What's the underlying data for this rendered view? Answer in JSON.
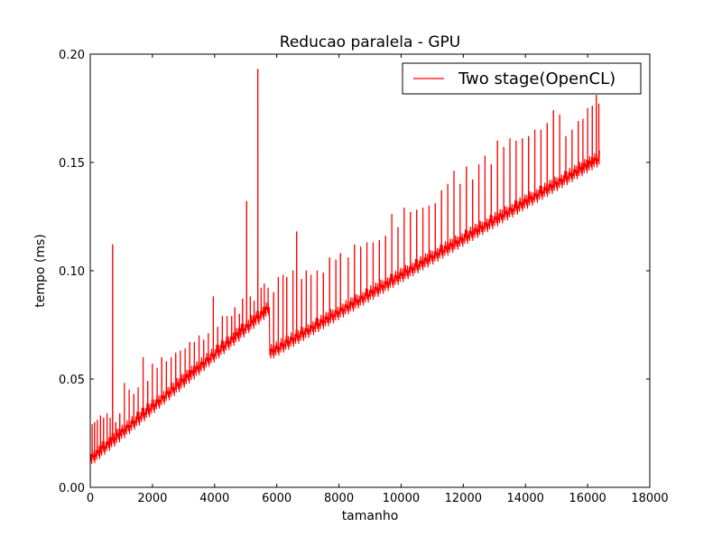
{
  "chart_data": {
    "type": "line",
    "title": "Reducao paralela - GPU",
    "xlabel": "tamanho",
    "ylabel": "tempo (ms)",
    "xlim": [
      0,
      18000
    ],
    "ylim": [
      0.0,
      0.2
    ],
    "xticks": [
      0,
      2000,
      4000,
      6000,
      8000,
      10000,
      12000,
      14000,
      16000,
      18000
    ],
    "xtick_labels": [
      "0",
      "2000",
      "4000",
      "6000",
      "8000",
      "10000",
      "12000",
      "14000",
      "16000",
      "18000"
    ],
    "yticks": [
      0.0,
      0.05,
      0.1,
      0.15,
      0.2
    ],
    "ytick_labels": [
      "0.00",
      "0.05",
      "0.10",
      "0.15",
      "0.20"
    ],
    "grid": false,
    "legend_position": "top-right",
    "series": [
      {
        "name": "Two stage(OpenCL)",
        "color": "#ff0000",
        "baseline": [
          {
            "x": 0,
            "y": 0.013
          },
          {
            "x": 5200,
            "y": 0.076
          },
          {
            "x": 5760,
            "y": 0.083
          },
          {
            "x": 5770,
            "y": 0.062
          },
          {
            "x": 16384,
            "y": 0.152
          }
        ],
        "band_width": 0.0035,
        "spikes": [
          {
            "x": 60,
            "y": 0.029
          },
          {
            "x": 140,
            "y": 0.03
          },
          {
            "x": 230,
            "y": 0.031
          },
          {
            "x": 330,
            "y": 0.033
          },
          {
            "x": 430,
            "y": 0.032
          },
          {
            "x": 540,
            "y": 0.034
          },
          {
            "x": 640,
            "y": 0.032
          },
          {
            "x": 720,
            "y": 0.112
          },
          {
            "x": 820,
            "y": 0.03
          },
          {
            "x": 950,
            "y": 0.034
          },
          {
            "x": 1100,
            "y": 0.048
          },
          {
            "x": 1250,
            "y": 0.045
          },
          {
            "x": 1400,
            "y": 0.043
          },
          {
            "x": 1540,
            "y": 0.046
          },
          {
            "x": 1700,
            "y": 0.06
          },
          {
            "x": 1850,
            "y": 0.049
          },
          {
            "x": 2000,
            "y": 0.057
          },
          {
            "x": 2150,
            "y": 0.055
          },
          {
            "x": 2300,
            "y": 0.06
          },
          {
            "x": 2450,
            "y": 0.058
          },
          {
            "x": 2600,
            "y": 0.06
          },
          {
            "x": 2750,
            "y": 0.062
          },
          {
            "x": 2900,
            "y": 0.063
          },
          {
            "x": 3050,
            "y": 0.064
          },
          {
            "x": 3200,
            "y": 0.067
          },
          {
            "x": 3350,
            "y": 0.067
          },
          {
            "x": 3500,
            "y": 0.07
          },
          {
            "x": 3650,
            "y": 0.068
          },
          {
            "x": 3800,
            "y": 0.071
          },
          {
            "x": 3960,
            "y": 0.088
          },
          {
            "x": 4100,
            "y": 0.074
          },
          {
            "x": 4250,
            "y": 0.079
          },
          {
            "x": 4400,
            "y": 0.079
          },
          {
            "x": 4550,
            "y": 0.079
          },
          {
            "x": 4650,
            "y": 0.083
          },
          {
            "x": 4800,
            "y": 0.08
          },
          {
            "x": 4900,
            "y": 0.087
          },
          {
            "x": 5030,
            "y": 0.132
          },
          {
            "x": 5150,
            "y": 0.088
          },
          {
            "x": 5270,
            "y": 0.086
          },
          {
            "x": 5390,
            "y": 0.193
          },
          {
            "x": 5500,
            "y": 0.092
          },
          {
            "x": 5600,
            "y": 0.094
          },
          {
            "x": 5720,
            "y": 0.092
          },
          {
            "x": 5900,
            "y": 0.09
          },
          {
            "x": 6050,
            "y": 0.097
          },
          {
            "x": 6200,
            "y": 0.098
          },
          {
            "x": 6320,
            "y": 0.097
          },
          {
            "x": 6520,
            "y": 0.1
          },
          {
            "x": 6640,
            "y": 0.118
          },
          {
            "x": 6800,
            "y": 0.096
          },
          {
            "x": 6950,
            "y": 0.1
          },
          {
            "x": 7100,
            "y": 0.098
          },
          {
            "x": 7300,
            "y": 0.1
          },
          {
            "x": 7500,
            "y": 0.099
          },
          {
            "x": 7700,
            "y": 0.106
          },
          {
            "x": 7900,
            "y": 0.105
          },
          {
            "x": 8050,
            "y": 0.108
          },
          {
            "x": 8300,
            "y": 0.106
          },
          {
            "x": 8500,
            "y": 0.112
          },
          {
            "x": 8700,
            "y": 0.111
          },
          {
            "x": 8900,
            "y": 0.113
          },
          {
            "x": 9100,
            "y": 0.113
          },
          {
            "x": 9300,
            "y": 0.114
          },
          {
            "x": 9500,
            "y": 0.116
          },
          {
            "x": 9700,
            "y": 0.126
          },
          {
            "x": 9900,
            "y": 0.12
          },
          {
            "x": 10100,
            "y": 0.129
          },
          {
            "x": 10300,
            "y": 0.127
          },
          {
            "x": 10500,
            "y": 0.128
          },
          {
            "x": 10700,
            "y": 0.129
          },
          {
            "x": 10900,
            "y": 0.13
          },
          {
            "x": 11100,
            "y": 0.131
          },
          {
            "x": 11300,
            "y": 0.137
          },
          {
            "x": 11500,
            "y": 0.14
          },
          {
            "x": 11700,
            "y": 0.146
          },
          {
            "x": 11900,
            "y": 0.14
          },
          {
            "x": 12100,
            "y": 0.148
          },
          {
            "x": 12300,
            "y": 0.142
          },
          {
            "x": 12500,
            "y": 0.149
          },
          {
            "x": 12700,
            "y": 0.153
          },
          {
            "x": 12900,
            "y": 0.149
          },
          {
            "x": 13100,
            "y": 0.16
          },
          {
            "x": 13300,
            "y": 0.157
          },
          {
            "x": 13500,
            "y": 0.161
          },
          {
            "x": 13700,
            "y": 0.16
          },
          {
            "x": 13900,
            "y": 0.161
          },
          {
            "x": 14100,
            "y": 0.162
          },
          {
            "x": 14300,
            "y": 0.165
          },
          {
            "x": 14500,
            "y": 0.165
          },
          {
            "x": 14700,
            "y": 0.168
          },
          {
            "x": 14900,
            "y": 0.174
          },
          {
            "x": 15100,
            "y": 0.172
          },
          {
            "x": 15300,
            "y": 0.162
          },
          {
            "x": 15500,
            "y": 0.165
          },
          {
            "x": 15700,
            "y": 0.169
          },
          {
            "x": 15850,
            "y": 0.17
          },
          {
            "x": 16000,
            "y": 0.175
          },
          {
            "x": 16150,
            "y": 0.176
          },
          {
            "x": 16280,
            "y": 0.181
          },
          {
            "x": 16360,
            "y": 0.177
          }
        ]
      }
    ]
  }
}
